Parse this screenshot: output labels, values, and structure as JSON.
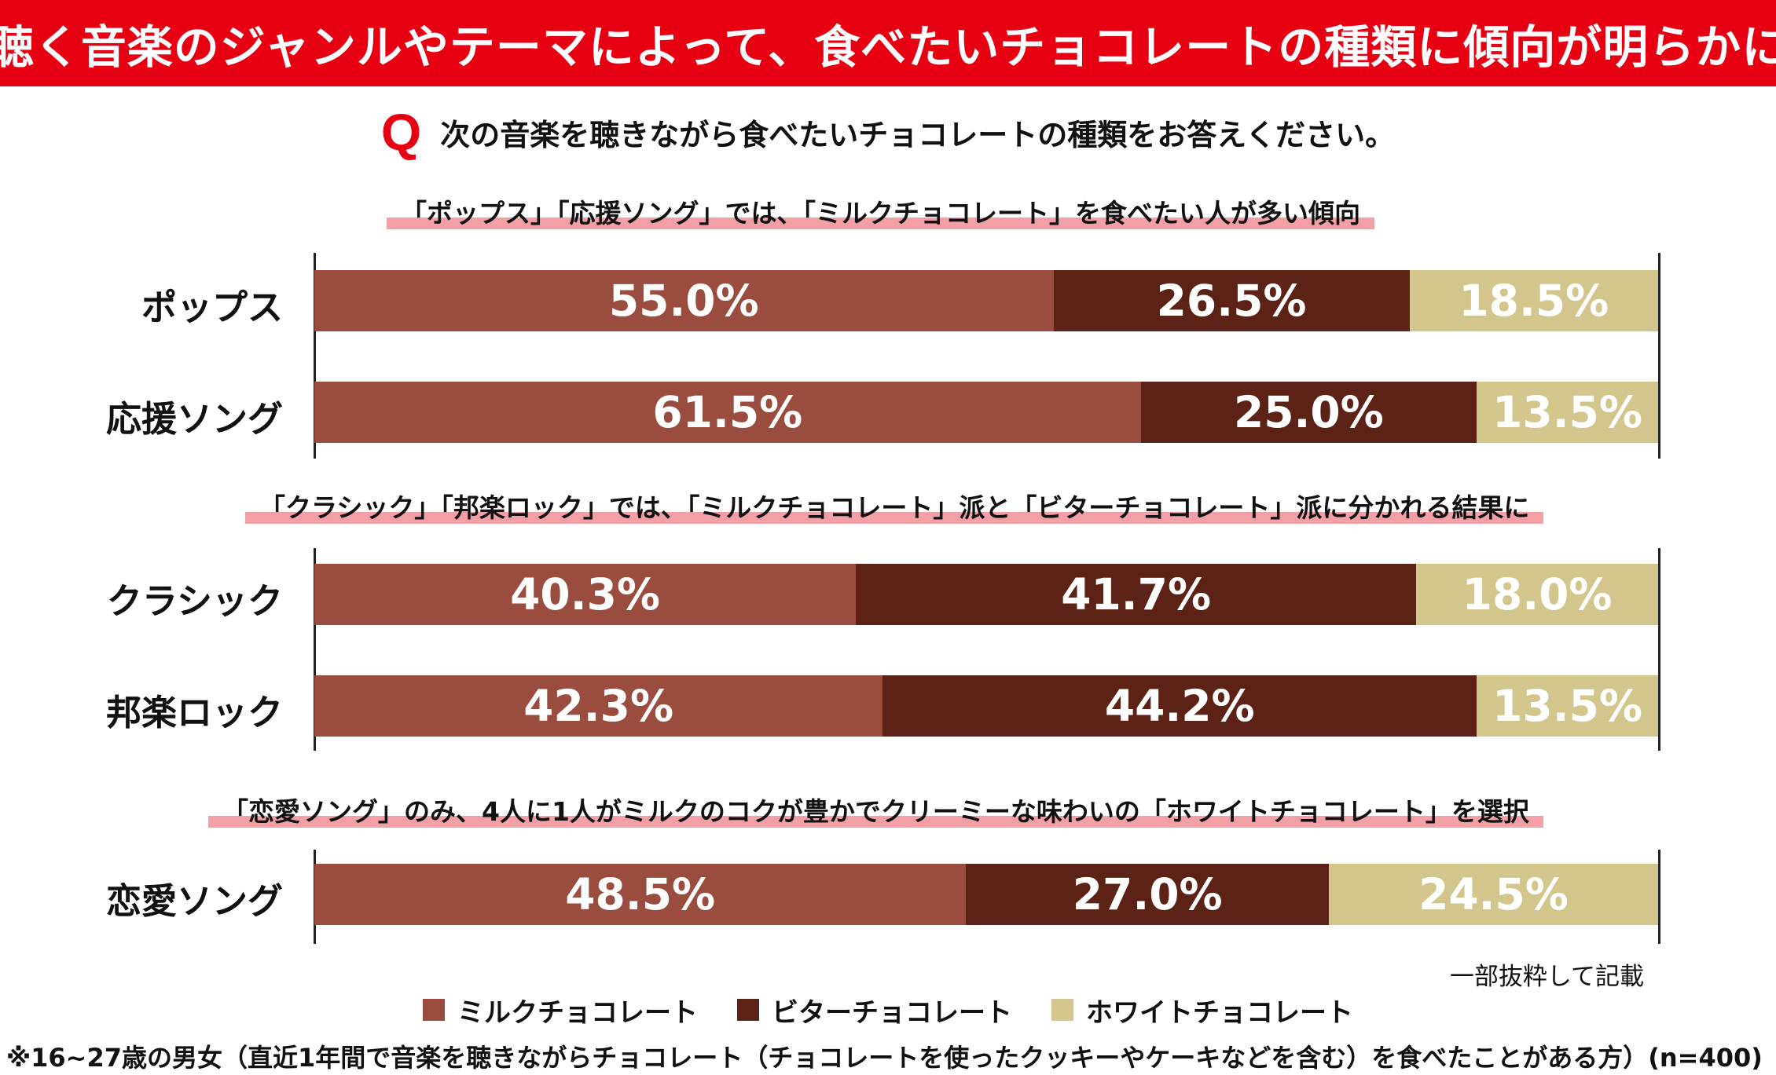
{
  "header": {
    "title": "聴く音楽のジャンルやテーマによって、食べたいチョコレートの種類に傾向が明らかに"
  },
  "question": {
    "mark": "Q",
    "text": "次の音楽を聴きながら食べたいチョコレートの種類をお答えください。"
  },
  "subheadings": [
    "「ポップス」「応援ソング」では、「ミルクチョコレート」を食べたい人が多い傾向",
    "「クラシック」「邦楽ロック」では、「ミルクチョコレート」派と「ビターチョコレート」派に分かれる結果に",
    "「恋愛ソング」のみ、4人に1人がミルクのコクが豊かでクリーミーな味わいの「ホワイトチョコレート」を選択"
  ],
  "notes": {
    "excerpt": "一部抜粋して記載",
    "footnote": "※16~27歳の男女（直近1年間で音楽を聴きながらチョコレート（チョコレートを使ったクッキーやケーキなどを含む）を食べたことがある方）(n=400)"
  },
  "chart_data": {
    "type": "bar",
    "orientation": "horizontal",
    "stacked": "100%",
    "categories": [
      "ポップス",
      "応援ソング",
      "クラシック",
      "邦楽ロック",
      "恋愛ソング"
    ],
    "series": [
      {
        "name": "ミルクチョコレート",
        "color": "#9a4d3f",
        "values": [
          55.0,
          61.5,
          40.3,
          42.3,
          48.5
        ],
        "labels": [
          "55.0%",
          "61.5%",
          "40.3%",
          "42.3%",
          "48.5%"
        ]
      },
      {
        "name": "ビターチョコレート",
        "color": "#5c2216",
        "values": [
          26.5,
          25.0,
          41.7,
          44.2,
          27.0
        ],
        "labels": [
          "26.5%",
          "25.0%",
          "41.7%",
          "44.2%",
          "27.0%"
        ]
      },
      {
        "name": "ホワイトチョコレート",
        "color": "#d3c68d",
        "values": [
          18.5,
          13.5,
          18.0,
          13.5,
          24.5
        ],
        "labels": [
          "18.5%",
          "13.5%",
          "18.0%",
          "13.5%",
          "24.5%"
        ]
      }
    ],
    "xlim": [
      0,
      100
    ],
    "legend_position": "bottom"
  }
}
